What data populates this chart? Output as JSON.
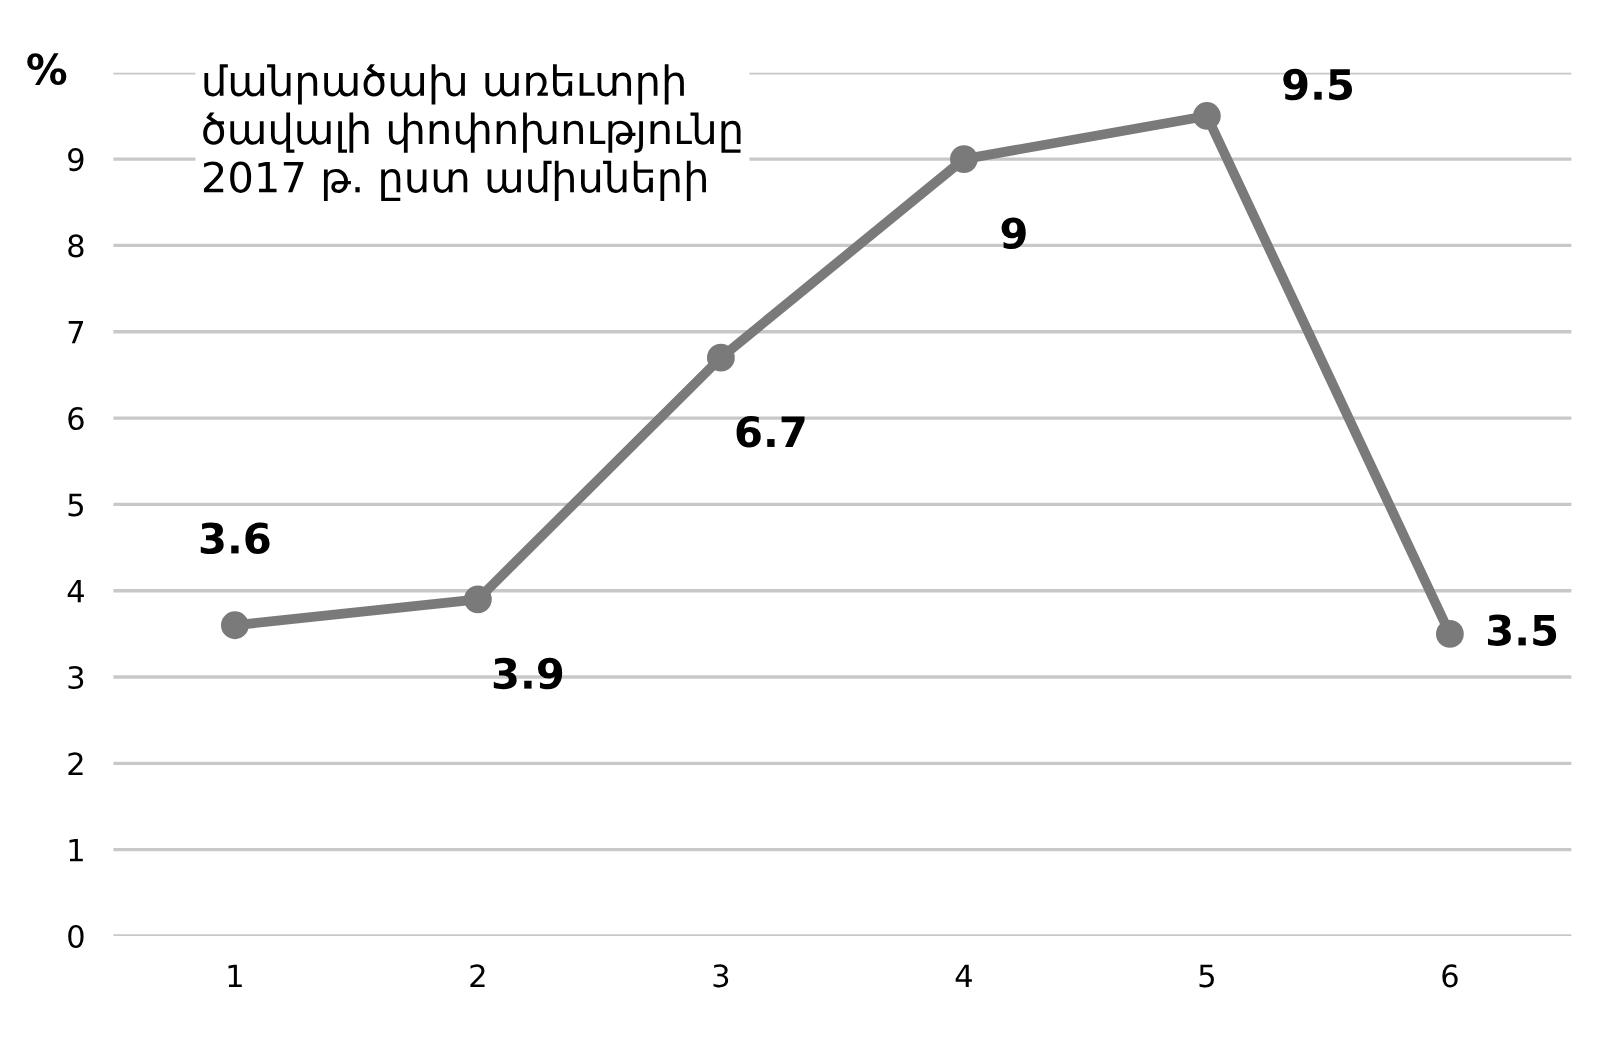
{
  "chart_data": {
    "type": "line",
    "title": "մանրածախ առեւտրի\nծավալի փոփոխությունը\n2017 թ. ըստ ամիսների",
    "ylabel": "%",
    "categories": [
      "1",
      "2",
      "3",
      "4",
      "5",
      "6"
    ],
    "series": [
      {
        "color": "#7a7a7a",
        "values": [
          3.6,
          3.9,
          6.7,
          9,
          9.5,
          3.5
        ]
      }
    ],
    "ylim": [
      0,
      10
    ],
    "yticks": [
      0,
      1,
      2,
      3,
      4,
      5,
      6,
      7,
      8,
      9,
      {
        "value": 10,
        "label": null
      }
    ],
    "grid": "y",
    "marker": "circle",
    "line_style": "solid",
    "data_labels": true,
    "legend": false
  }
}
